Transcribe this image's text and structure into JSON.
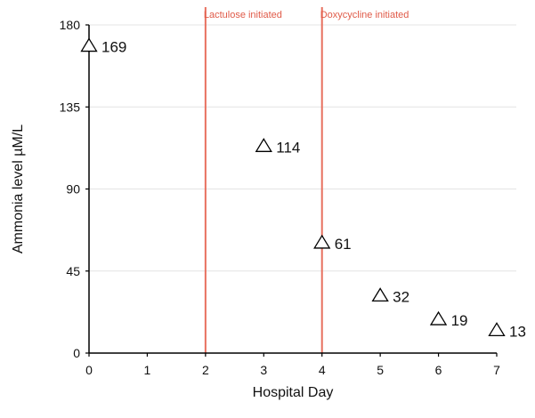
{
  "chart_data": {
    "type": "scatter",
    "xlabel": "Hospital Day",
    "ylabel": "Ammonia level µM/L",
    "xlim": [
      0,
      7
    ],
    "ylim": [
      0,
      180
    ],
    "xticks": [
      0,
      1,
      2,
      3,
      4,
      5,
      6,
      7
    ],
    "yticks": [
      0,
      45,
      90,
      135,
      180
    ],
    "grid": "horizontal",
    "marker": "open-triangle",
    "points": [
      {
        "x": 0,
        "y": 169,
        "label": "169"
      },
      {
        "x": 3,
        "y": 114,
        "label": "114"
      },
      {
        "x": 4,
        "y": 61,
        "label": "61"
      },
      {
        "x": 5,
        "y": 32,
        "label": "32"
      },
      {
        "x": 6,
        "y": 19,
        "label": "19"
      },
      {
        "x": 7,
        "y": 13,
        "label": "13"
      }
    ],
    "annotations": [
      {
        "x": 2,
        "text": "Lactulose initiated"
      },
      {
        "x": 4,
        "text": "Doxycycline initiated"
      }
    ],
    "colors": {
      "annotation": "#e8705f",
      "annotation_text": "#e05a48",
      "grid": "#e4e4e4",
      "axis": "#000000"
    }
  }
}
